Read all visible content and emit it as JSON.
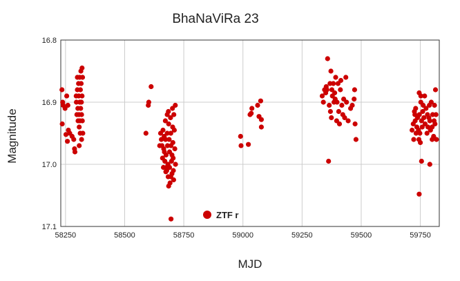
{
  "chart_data": {
    "type": "scatter",
    "title": "BhaNaViRa 23",
    "xlabel": "MJD",
    "ylabel": "Magnitude",
    "xlim": [
      58230,
      59830
    ],
    "ylim": [
      16.8,
      17.1
    ],
    "y_inverted": true,
    "grid": true,
    "legend_position": "bottom-center",
    "x_ticks": [
      "58250",
      "58500",
      "58750",
      "59000",
      "59250",
      "59500",
      "59750"
    ],
    "y_ticks": [
      "16.8",
      "16.9",
      "17.0",
      "17.1"
    ],
    "series": [
      {
        "name": "ZTF r",
        "color": "#cc0000",
        "points": [
          [
            58235,
            16.88
          ],
          [
            58238,
            16.9
          ],
          [
            58240,
            16.905
          ],
          [
            58248,
            16.91
          ],
          [
            58255,
            16.89
          ],
          [
            58260,
            16.905
          ],
          [
            58236,
            16.935
          ],
          [
            58252,
            16.952
          ],
          [
            58258,
            16.963
          ],
          [
            58262,
            16.945
          ],
          [
            58268,
            16.95
          ],
          [
            58278,
            16.955
          ],
          [
            58285,
            16.96
          ],
          [
            58288,
            16.975
          ],
          [
            58290,
            16.98
          ],
          [
            58295,
            16.89
          ],
          [
            58296,
            16.9
          ],
          [
            58298,
            16.92
          ],
          [
            58300,
            16.86
          ],
          [
            58300,
            16.88
          ],
          [
            58302,
            16.91
          ],
          [
            58303,
            16.93
          ],
          [
            58305,
            16.87
          ],
          [
            58306,
            16.89
          ],
          [
            58307,
            16.92
          ],
          [
            58308,
            16.94
          ],
          [
            58310,
            16.86
          ],
          [
            58310,
            16.9
          ],
          [
            58311,
            16.93
          ],
          [
            58312,
            16.95
          ],
          [
            58313,
            16.88
          ],
          [
            58314,
            16.91
          ],
          [
            58315,
            16.85
          ],
          [
            58316,
            16.87
          ],
          [
            58317,
            16.9
          ],
          [
            58318,
            16.92
          ],
          [
            58318,
            16.96
          ],
          [
            58320,
            16.845
          ],
          [
            58320,
            16.89
          ],
          [
            58321,
            16.93
          ],
          [
            58322,
            16.86
          ],
          [
            58323,
            16.95
          ],
          [
            58308,
            16.97
          ],
          [
            58590,
            16.95
          ],
          [
            58600,
            16.905
          ],
          [
            58602,
            16.9
          ],
          [
            58612,
            16.875
          ],
          [
            58648,
            16.97
          ],
          [
            58652,
            16.95
          ],
          [
            58655,
            16.96
          ],
          [
            58658,
            16.97
          ],
          [
            58660,
            16.99
          ],
          [
            58662,
            16.945
          ],
          [
            58665,
            16.975
          ],
          [
            58667,
            16.955
          ],
          [
            58668,
            16.98
          ],
          [
            58670,
            16.995
          ],
          [
            58672,
            16.93
          ],
          [
            58673,
            16.96
          ],
          [
            58675,
            16.985
          ],
          [
            58677,
            17.005
          ],
          [
            58678,
            17.01
          ],
          [
            58680,
            16.92
          ],
          [
            58680,
            16.95
          ],
          [
            58681,
            16.97
          ],
          [
            58683,
            17.0
          ],
          [
            58684,
            17.02
          ],
          [
            58685,
            16.915
          ],
          [
            58686,
            16.935
          ],
          [
            58688,
            16.96
          ],
          [
            58690,
            16.98
          ],
          [
            58690,
            17.005
          ],
          [
            58692,
            17.03
          ],
          [
            58694,
            16.925
          ],
          [
            58695,
            16.95
          ],
          [
            58696,
            16.97
          ],
          [
            58698,
            16.995
          ],
          [
            58700,
            17.015
          ],
          [
            58702,
            16.91
          ],
          [
            58703,
            16.94
          ],
          [
            58704,
            16.965
          ],
          [
            58705,
            16.99
          ],
          [
            58706,
            17.01
          ],
          [
            58707,
            17.025
          ],
          [
            58708,
            16.92
          ],
          [
            58710,
            16.945
          ],
          [
            58712,
            16.975
          ],
          [
            58714,
            16.905
          ],
          [
            58715,
            17.0
          ],
          [
            58674,
            17.012
          ],
          [
            58686,
            17.035
          ],
          [
            58695,
            17.02
          ],
          [
            58700,
            16.985
          ],
          [
            58664,
            17.005
          ],
          [
            58696,
            17.088
          ],
          [
            58990,
            16.955
          ],
          [
            58992,
            16.97
          ],
          [
            59023,
            16.968
          ],
          [
            59030,
            16.92
          ],
          [
            59035,
            16.918
          ],
          [
            59038,
            16.91
          ],
          [
            59062,
            16.905
          ],
          [
            59068,
            16.923
          ],
          [
            59075,
            16.898
          ],
          [
            59078,
            16.928
          ],
          [
            59078,
            16.94
          ],
          [
            59335,
            16.89
          ],
          [
            59340,
            16.9
          ],
          [
            59345,
            16.88
          ],
          [
            59350,
            16.885
          ],
          [
            59352,
            16.875
          ],
          [
            59355,
            16.88
          ],
          [
            59358,
            16.83
          ],
          [
            59362,
            16.995
          ],
          [
            59365,
            16.905
          ],
          [
            59368,
            16.87
          ],
          [
            59370,
            16.915
          ],
          [
            59372,
            16.85
          ],
          [
            59374,
            16.925
          ],
          [
            59376,
            16.88
          ],
          [
            59378,
            16.89
          ],
          [
            59382,
            16.87
          ],
          [
            59385,
            16.9
          ],
          [
            59388,
            16.885
          ],
          [
            59390,
            16.895
          ],
          [
            59392,
            16.86
          ],
          [
            59396,
            16.93
          ],
          [
            59398,
            16.9
          ],
          [
            59402,
            16.87
          ],
          [
            59405,
            16.915
          ],
          [
            59408,
            16.935
          ],
          [
            59412,
            16.88
          ],
          [
            59414,
            16.865
          ],
          [
            59418,
            16.905
          ],
          [
            59422,
            16.92
          ],
          [
            59426,
            16.895
          ],
          [
            59430,
            16.925
          ],
          [
            59435,
            16.86
          ],
          [
            59438,
            16.9
          ],
          [
            59445,
            16.93
          ],
          [
            59455,
            16.91
          ],
          [
            59462,
            16.905
          ],
          [
            59470,
            16.895
          ],
          [
            59472,
            16.88
          ],
          [
            59474,
            16.935
          ],
          [
            59478,
            16.96
          ],
          [
            59715,
            16.945
          ],
          [
            59720,
            16.935
          ],
          [
            59722,
            16.96
          ],
          [
            59725,
            16.915
          ],
          [
            59727,
            16.92
          ],
          [
            59728,
            16.93
          ],
          [
            59730,
            16.91
          ],
          [
            59732,
            16.95
          ],
          [
            59735,
            16.94
          ],
          [
            59738,
            16.925
          ],
          [
            59742,
            16.945
          ],
          [
            59744,
            16.96
          ],
          [
            59746,
            16.92
          ],
          [
            59748,
            16.95
          ],
          [
            59750,
            16.965
          ],
          [
            59752,
            16.89
          ],
          [
            59752,
            16.9
          ],
          [
            59755,
            16.93
          ],
          [
            59758,
            16.94
          ],
          [
            59760,
            16.915
          ],
          [
            59762,
            16.905
          ],
          [
            59765,
            16.925
          ],
          [
            59768,
            16.89
          ],
          [
            59770,
            16.935
          ],
          [
            59774,
            16.91
          ],
          [
            59778,
            16.95
          ],
          [
            59780,
            16.92
          ],
          [
            59782,
            16.94
          ],
          [
            59786,
            16.925
          ],
          [
            59788,
            16.905
          ],
          [
            59790,
            16.93
          ],
          [
            59793,
            16.945
          ],
          [
            59796,
            16.9
          ],
          [
            59800,
            16.94
          ],
          [
            59802,
            16.92
          ],
          [
            59806,
            16.955
          ],
          [
            59808,
            16.93
          ],
          [
            59810,
            16.905
          ],
          [
            59812,
            16.935
          ],
          [
            59814,
            16.88
          ],
          [
            59816,
            16.92
          ],
          [
            59818,
            16.96
          ],
          [
            59800,
            16.96
          ],
          [
            59755,
            16.995
          ],
          [
            59745,
            16.885
          ],
          [
            59790,
            17.0
          ],
          [
            59745,
            17.048
          ]
        ]
      }
    ]
  }
}
